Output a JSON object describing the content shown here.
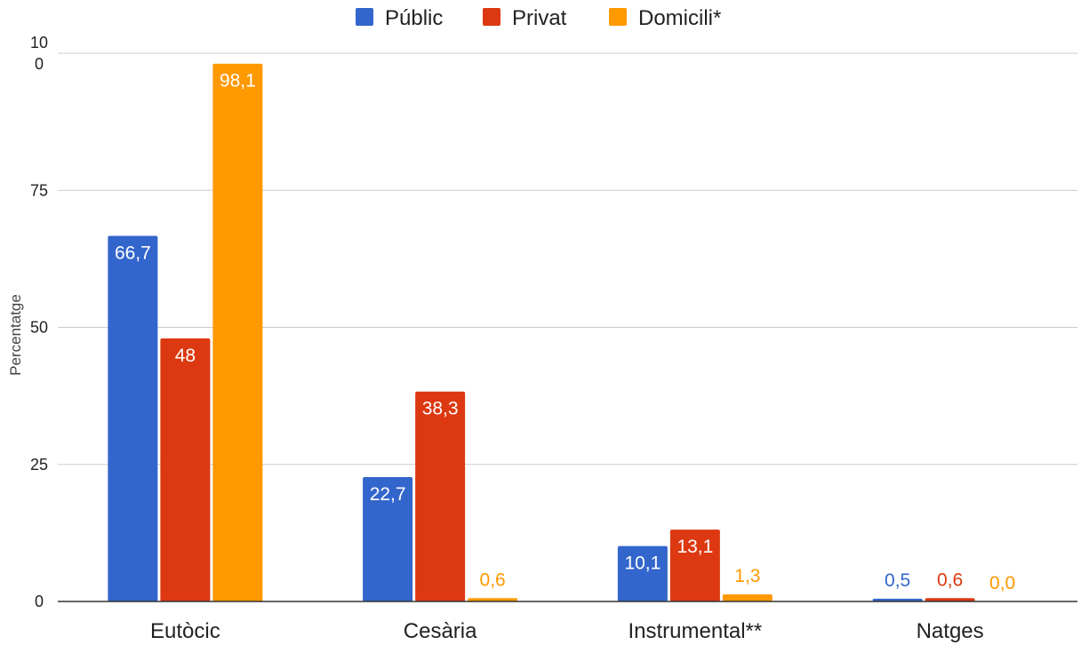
{
  "chart_data": {
    "type": "bar",
    "title": "",
    "xlabel": "",
    "ylabel": "Percentatge",
    "ylim": [
      0,
      100
    ],
    "yticks": [
      0,
      25,
      50,
      75,
      100
    ],
    "ytick_labels": [
      "0",
      "25",
      "50",
      "75",
      "10\n0"
    ],
    "categories": [
      "Eutòcic",
      "Cesària",
      "Instrumental**",
      "Natges"
    ],
    "legend_position": "top-center",
    "grid": true,
    "series": [
      {
        "name": "Públic",
        "color": "#3366cc",
        "values": [
          66.7,
          22.7,
          10.1,
          0.5
        ],
        "labels": [
          "66,7",
          "22,7",
          "10,1",
          "0,5"
        ]
      },
      {
        "name": "Privat",
        "color": "#dc3912",
        "values": [
          48,
          38.3,
          13.1,
          0.6
        ],
        "labels": [
          "48",
          "38,3",
          "13,1",
          "0,6"
        ]
      },
      {
        "name": "Domicili*",
        "color": "#ff9900",
        "values": [
          98.1,
          0.6,
          1.3,
          0.0
        ],
        "labels": [
          "98,1",
          "0,6",
          "1,3",
          "0,0"
        ]
      }
    ]
  }
}
